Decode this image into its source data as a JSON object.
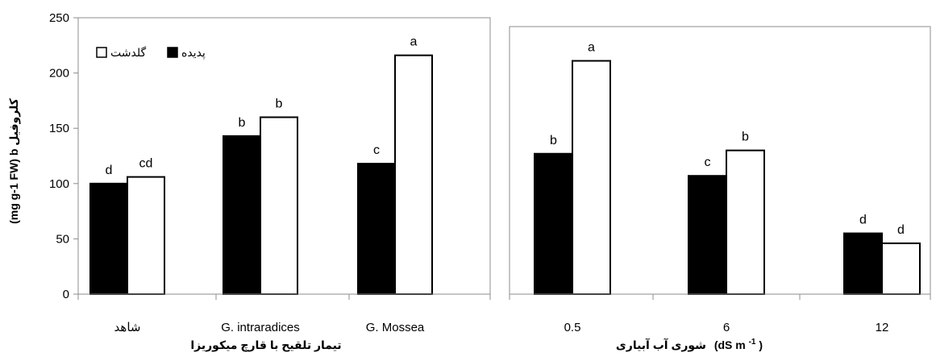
{
  "ylabel": "(mg g-1 FW) b کلروفیل",
  "legend": [
    {
      "name": "پدیده",
      "color": "#000000"
    },
    {
      "name": "گلدشت",
      "color": "#ffffff"
    }
  ],
  "chart_data": [
    {
      "type": "bar",
      "xlabel": "تیمار تلقیح با قارچ میکوریزا",
      "ylabel": "(mg g-1 FW) b کلروفیل",
      "ylim": [
        0,
        250
      ],
      "yticks": [
        "0",
        "50",
        "100",
        "150",
        "200",
        "250"
      ],
      "categories": [
        "شاهد",
        "G. intraradices",
        "G. Mossea"
      ],
      "series": [
        {
          "name": "پدیده",
          "color": "#000000",
          "values": [
            100,
            143,
            118
          ],
          "labels": [
            "d",
            "b",
            "c"
          ]
        },
        {
          "name": "گلدشت",
          "color": "#ffffff",
          "values": [
            106,
            160,
            216
          ],
          "labels": [
            "cd",
            "b",
            "a"
          ]
        }
      ],
      "legend_position": "top-left",
      "grid": false
    },
    {
      "type": "bar",
      "xlabel_main": "شوری آب آبیاری",
      "xlabel_unit": "(dS m",
      "xlabel_sup": "-1",
      "xlabel_close": ")",
      "ylim": [
        0,
        250
      ],
      "categories": [
        "0.5",
        "6",
        "12"
      ],
      "series": [
        {
          "name": "پدیده",
          "color": "#000000",
          "values": [
            127,
            107,
            55
          ],
          "labels": [
            "b",
            "c",
            "d"
          ]
        },
        {
          "name": "گلدشت",
          "color": "#ffffff",
          "values": [
            211,
            130,
            46
          ],
          "labels": [
            "a",
            "b",
            "d"
          ]
        }
      ],
      "grid": false
    }
  ]
}
